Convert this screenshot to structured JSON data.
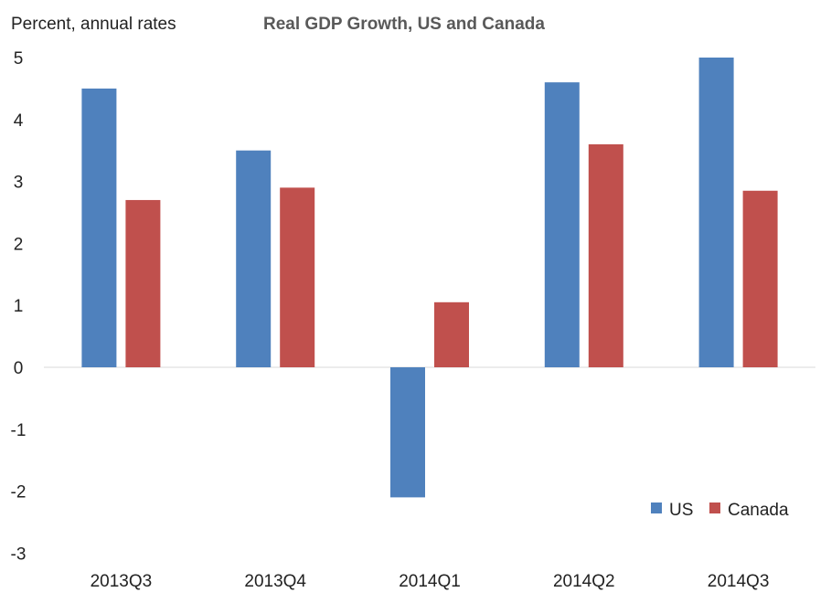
{
  "chart_data": {
    "type": "bar",
    "title": "Real GDP Growth, US and Canada",
    "ylabel": "Percent, annual rates",
    "xlabel": "",
    "categories": [
      "2013Q3",
      "2013Q4",
      "2014Q1",
      "2014Q2",
      "2014Q3"
    ],
    "series": [
      {
        "name": "US",
        "color": "#4F81BD",
        "values": [
          4.5,
          3.5,
          -2.1,
          4.6,
          5.0
        ]
      },
      {
        "name": "Canada",
        "color": "#C0504D",
        "values": [
          2.7,
          2.9,
          1.05,
          3.6,
          2.85
        ]
      }
    ],
    "ylim": [
      -3,
      5
    ],
    "yticks": [
      "5",
      "4",
      "3",
      "2",
      "1",
      "0",
      "-1",
      "-2",
      "-3"
    ],
    "grid": false,
    "legend": "bottom-right"
  }
}
